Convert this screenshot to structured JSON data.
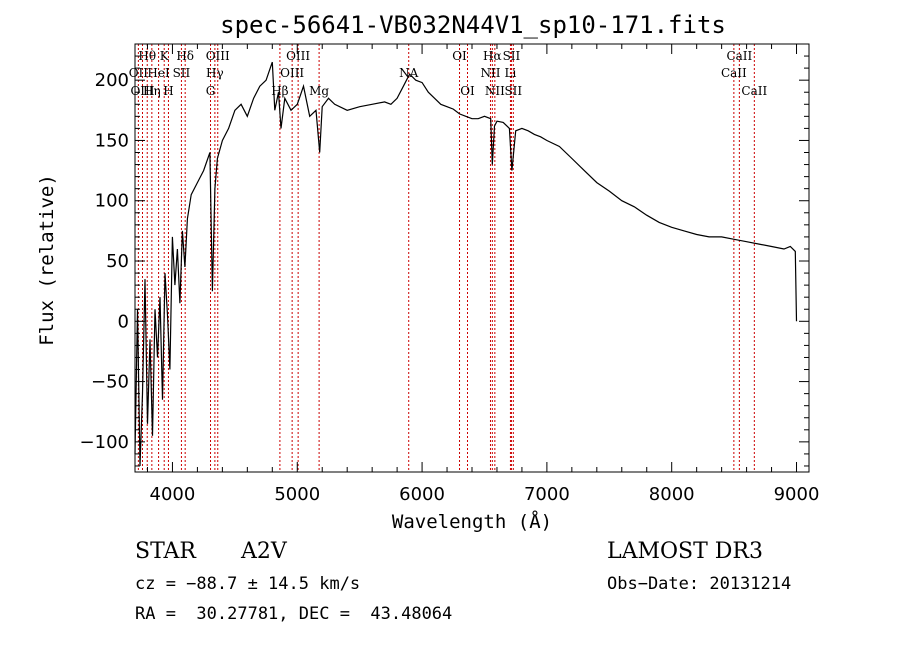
{
  "chart_data": {
    "type": "line",
    "title": "spec-56641-VB032N44V1_sp10-171.fits",
    "xlabel": "Wavelength (Å)",
    "ylabel": "Flux (relative)",
    "xlim": [
      3700,
      9100
    ],
    "ylim": [
      -125,
      230
    ],
    "xticks": [
      4000,
      5000,
      6000,
      7000,
      8000,
      9000
    ],
    "yticks": [
      -100,
      -50,
      0,
      50,
      100,
      150,
      200
    ],
    "x_minor_step": 200,
    "y_minor_step": 10,
    "series": [
      {
        "name": "spectrum",
        "x": [
          3700,
          3720,
          3740,
          3760,
          3780,
          3800,
          3820,
          3840,
          3860,
          3880,
          3900,
          3920,
          3940,
          3960,
          3980,
          4000,
          4020,
          4040,
          4060,
          4080,
          4100,
          4120,
          4150,
          4200,
          4250,
          4300,
          4320,
          4340,
          4360,
          4400,
          4450,
          4500,
          4550,
          4600,
          4650,
          4700,
          4750,
          4800,
          4820,
          4850,
          4870,
          4900,
          4950,
          5000,
          5050,
          5100,
          5150,
          5180,
          5200,
          5250,
          5300,
          5400,
          5500,
          5600,
          5700,
          5750,
          5800,
          5850,
          5900,
          5950,
          6000,
          6050,
          6100,
          6150,
          6200,
          6250,
          6300,
          6350,
          6400,
          6450,
          6500,
          6550,
          6563,
          6580,
          6600,
          6650,
          6700,
          6720,
          6750,
          6800,
          6850,
          6900,
          6950,
          7000,
          7100,
          7200,
          7300,
          7400,
          7500,
          7600,
          7700,
          7800,
          7900,
          8000,
          8100,
          8200,
          8300,
          8400,
          8500,
          8600,
          8700,
          8800,
          8900,
          8950,
          8990,
          9000
        ],
        "y": [
          -110,
          10,
          -120,
          -60,
          35,
          -85,
          -15,
          -95,
          10,
          -30,
          20,
          -65,
          40,
          5,
          -40,
          70,
          30,
          60,
          15,
          75,
          45,
          85,
          105,
          115,
          125,
          140,
          25,
          110,
          135,
          150,
          160,
          175,
          180,
          170,
          185,
          195,
          200,
          215,
          175,
          190,
          160,
          185,
          175,
          180,
          195,
          170,
          175,
          140,
          178,
          185,
          180,
          175,
          178,
          180,
          182,
          180,
          185,
          195,
          205,
          200,
          198,
          190,
          185,
          180,
          178,
          176,
          172,
          170,
          168,
          168,
          170,
          168,
          130,
          162,
          166,
          165,
          160,
          125,
          158,
          160,
          158,
          155,
          153,
          150,
          145,
          135,
          125,
          115,
          108,
          100,
          95,
          88,
          82,
          78,
          75,
          72,
          70,
          70,
          68,
          66,
          64,
          62,
          60,
          62,
          58,
          0
        ]
      }
    ],
    "emission_lines": [
      {
        "label": "Hθ",
        "wavelength": 3798,
        "row": 1
      },
      {
        "label": "OII",
        "wavelength": 3727,
        "row": 2
      },
      {
        "label": "OIII",
        "wavelength": 3760,
        "row": 3
      },
      {
        "label": "K",
        "wavelength": 3934,
        "row": 1
      },
      {
        "label": "HeI",
        "wavelength": 3889,
        "row": 2
      },
      {
        "label": "Hη",
        "wavelength": 3835,
        "row": 3
      },
      {
        "label": "Hδ",
        "wavelength": 4102,
        "row": 1
      },
      {
        "label": "SII",
        "wavelength": 4072,
        "row": 2
      },
      {
        "label": "H",
        "wavelength": 3968,
        "row": 3
      },
      {
        "label": "OIII",
        "wavelength": 4363,
        "row": 1
      },
      {
        "label": "Hγ",
        "wavelength": 4340,
        "row": 2
      },
      {
        "label": "G",
        "wavelength": 4305,
        "row": 3
      },
      {
        "label": "OIII",
        "wavelength": 5007,
        "row": 1
      },
      {
        "label": "OIII",
        "wavelength": 4959,
        "row": 2
      },
      {
        "label": "Hβ",
        "wavelength": 4861,
        "row": 3
      },
      {
        "label": "Mg",
        "wavelength": 5175,
        "row": 3
      },
      {
        "label": "NA",
        "wavelength": 5893,
        "row": 2
      },
      {
        "label": "OI",
        "wavelength": 6300,
        "row": 1
      },
      {
        "label": "OI",
        "wavelength": 6364,
        "row": 3
      },
      {
        "label": "Hα",
        "wavelength": 6563,
        "row": 1
      },
      {
        "label": "SII",
        "wavelength": 6716,
        "row": 1
      },
      {
        "label": "NII",
        "wavelength": 6548,
        "row": 2
      },
      {
        "label": "Li",
        "wavelength": 6708,
        "row": 2
      },
      {
        "label": "NII",
        "wavelength": 6583,
        "row": 3
      },
      {
        "label": "SII",
        "wavelength": 6731,
        "row": 3
      },
      {
        "label": "CaII",
        "wavelength": 8542,
        "row": 1
      },
      {
        "label": "CaII",
        "wavelength": 8498,
        "row": 2
      },
      {
        "label": "CaII",
        "wavelength": 8662,
        "row": 3
      }
    ],
    "colors": {
      "line": "#000000",
      "marker": "#cc0000"
    }
  },
  "info": {
    "object_class": "STAR",
    "subclass": "A2V",
    "survey": "LAMOST DR3",
    "cz": "cz = −88.7 ± 14.5 km/s",
    "obs_date": "Obs−Date: 20131214",
    "coords": "RA =  30.27781, DEC =  43.48064"
  }
}
